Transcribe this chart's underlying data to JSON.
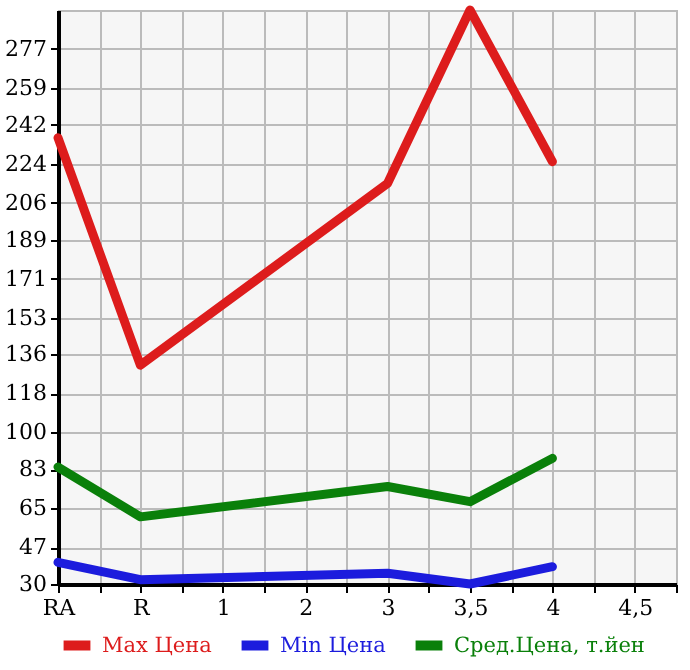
{
  "chart_data": {
    "type": "line",
    "categories": [
      "RA",
      "R",
      "1",
      "2",
      "3",
      "3,5",
      "4",
      "4,5"
    ],
    "series": [
      {
        "name": "Max Цена",
        "color": "#dd1c1c",
        "values": [
          236,
          131,
          null,
          null,
          215,
          295,
          225,
          null
        ]
      },
      {
        "name": "Min Цена",
        "color": "#1c1cdd",
        "values": [
          40,
          32,
          null,
          null,
          35,
          30,
          38,
          null
        ]
      },
      {
        "name": "Сред.Цена, т.йен",
        "color": "#0a800a",
        "values": [
          84,
          61,
          null,
          null,
          75,
          68,
          88,
          null
        ]
      }
    ],
    "ylim": [
      30,
      295
    ],
    "yticks": [
      30,
      47,
      65,
      83,
      100,
      118,
      136,
      153,
      171,
      189,
      206,
      224,
      242,
      259,
      277
    ],
    "grid": true,
    "legend": "bottom",
    "line_style": "solid"
  }
}
